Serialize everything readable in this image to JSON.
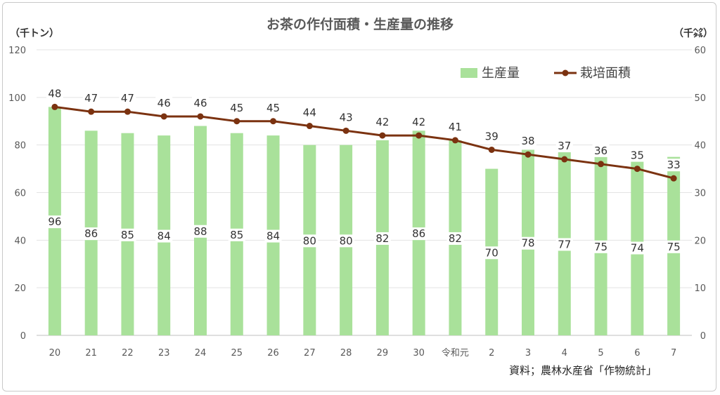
{
  "chart_data": {
    "type": "bar+line",
    "title": "お茶の作付面積・生産量の推移",
    "categories": [
      "20",
      "21",
      "22",
      "23",
      "24",
      "25",
      "26",
      "27",
      "28",
      "29",
      "30",
      "令和元",
      "2",
      "3",
      "4",
      "5",
      "6",
      "7"
    ],
    "series": [
      {
        "name": "生産量",
        "type": "bar",
        "axis": "left",
        "color": "#a9e19a",
        "values": [
          96,
          86,
          85,
          84,
          88,
          85,
          84,
          80,
          80,
          82,
          86,
          82,
          70,
          78,
          77,
          75,
          74,
          75
        ]
      },
      {
        "name": "栽培面積",
        "type": "line",
        "axis": "right",
        "color": "#7b3210",
        "values": [
          48,
          47,
          47,
          46,
          46,
          45,
          45,
          44,
          43,
          42,
          42,
          41,
          39,
          38,
          37,
          36,
          35,
          33
        ]
      }
    ],
    "y_left": {
      "unit_label": "（千トン）",
      "min": 0,
      "max": 120,
      "ticks": [
        0,
        20,
        40,
        60,
        80,
        100,
        120
      ]
    },
    "y_right": {
      "unit_label": "（千㌶）",
      "min": 0,
      "max": 60,
      "ticks": [
        0,
        10,
        20,
        30,
        40,
        50,
        60
      ]
    },
    "legend_position": "top-right",
    "grid": true,
    "source": "資料；農林水産省「作物統計」"
  }
}
